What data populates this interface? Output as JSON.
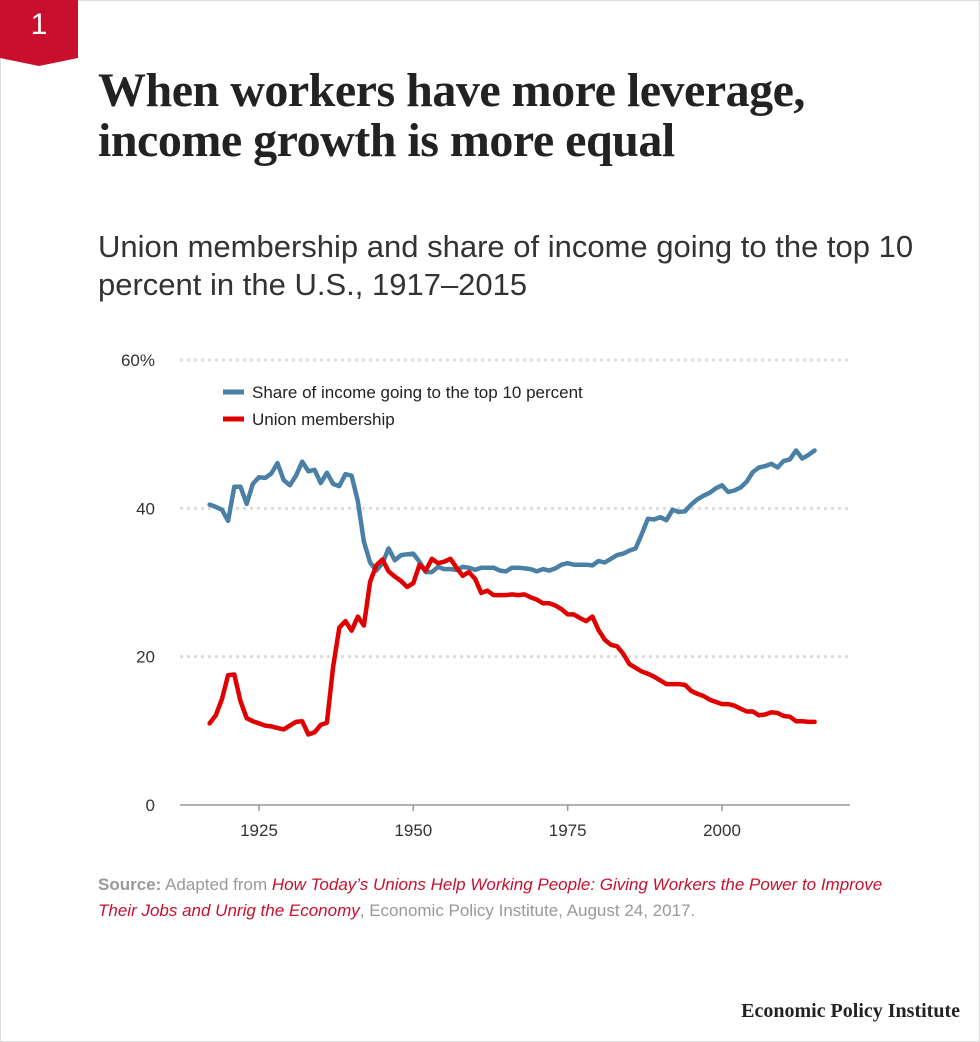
{
  "badge": {
    "number": "1",
    "color": "#c8102e"
  },
  "title": "When workers have more leverage, income growth is more equal",
  "subtitle": "Union membership and share of income going to the top 10 percent in the U.S., 1917–2015",
  "chart_data": {
    "type": "line",
    "title": "",
    "xlabel": "",
    "ylabel": "",
    "xlim": [
      1917,
      2015
    ],
    "ylim": [
      0,
      60
    ],
    "y_ticks": [
      {
        "v": 0,
        "label": "0"
      },
      {
        "v": 20,
        "label": "20"
      },
      {
        "v": 40,
        "label": "40"
      },
      {
        "v": 60,
        "label": "60%"
      }
    ],
    "x_ticks": [
      1925,
      1950,
      1975,
      2000
    ],
    "grid": "horizontal dotted",
    "legend": "top-left",
    "x_start": 1917,
    "series": [
      {
        "name": "Share of income going to the top 10 percent",
        "color": "#4a80a6",
        "values": [
          40.5,
          40.2,
          39.8,
          38.3,
          42.9,
          42.9,
          40.6,
          43.3,
          44.2,
          44.1,
          44.7,
          46.1,
          43.8,
          43.1,
          44.4,
          46.3,
          45.0,
          45.2,
          43.4,
          44.8,
          43.3,
          43.0,
          44.6,
          44.4,
          41.0,
          35.5,
          32.7,
          31.6,
          32.6,
          34.6,
          33.0,
          33.7,
          33.8,
          33.9,
          32.8,
          31.4,
          31.4,
          32.1,
          31.8,
          31.8,
          31.7,
          32.1,
          32.0,
          31.7,
          32.0,
          32.0,
          32.0,
          31.6,
          31.5,
          32.0,
          32.0,
          31.9,
          31.8,
          31.5,
          31.8,
          31.6,
          31.9,
          32.4,
          32.6,
          32.4,
          32.4,
          32.4,
          32.3,
          32.9,
          32.7,
          33.2,
          33.7,
          33.9,
          34.3,
          34.6,
          36.5,
          38.6,
          38.5,
          38.8,
          38.4,
          39.8,
          39.5,
          39.6,
          40.5,
          41.2,
          41.7,
          42.1,
          42.7,
          43.1,
          42.2,
          42.4,
          42.8,
          43.6,
          44.9,
          45.5,
          45.7,
          46.0,
          45.5,
          46.4,
          46.6,
          47.8,
          46.7,
          47.2,
          47.8
        ]
      },
      {
        "name": "Union membership",
        "color": "#e00000",
        "values": [
          11.0,
          12.1,
          14.3,
          17.5,
          17.6,
          14.0,
          11.7,
          11.3,
          11.0,
          10.7,
          10.6,
          10.4,
          10.2,
          10.7,
          11.2,
          11.3,
          9.5,
          9.8,
          10.8,
          11.1,
          18.6,
          23.9,
          24.8,
          23.5,
          25.4,
          24.2,
          30.1,
          32.3,
          33.1,
          31.5,
          30.8,
          30.2,
          29.4,
          29.9,
          32.4,
          31.6,
          33.2,
          32.6,
          32.8,
          33.2,
          32.0,
          30.9,
          31.4,
          30.5,
          28.6,
          28.9,
          28.3,
          28.3,
          28.3,
          28.4,
          28.3,
          28.4,
          28.0,
          27.7,
          27.2,
          27.2,
          26.9,
          26.4,
          25.7,
          25.7,
          25.2,
          24.8,
          25.4,
          23.6,
          22.3,
          21.6,
          21.4,
          20.4,
          19.0,
          18.5,
          18.0,
          17.7,
          17.3,
          16.8,
          16.3,
          16.3,
          16.3,
          16.2,
          15.4,
          15.0,
          14.7,
          14.2,
          13.9,
          13.6,
          13.6,
          13.4,
          13.0,
          12.6,
          12.6,
          12.1,
          12.2,
          12.5,
          12.4,
          12.0,
          11.9,
          11.3,
          11.3,
          11.2,
          11.2
        ]
      }
    ]
  },
  "source": {
    "label": "Source:",
    "pre": " Adapted from ",
    "work": "How Today’s Unions Help Working People: Giving Workers the Power to Improve Their Jobs and Unrig the Economy",
    "post": ", Economic Policy Institute, August 24, 2017."
  },
  "logo": "Economic Policy Institute"
}
